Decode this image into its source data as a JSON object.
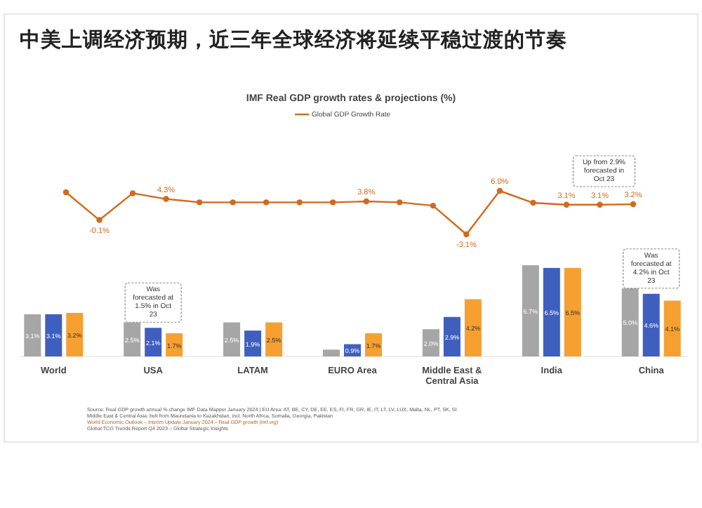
{
  "chart_data": [
    {
      "type": "line",
      "title": "中美上调经济预期，近三年全球经济将延续平稳过渡的节奏",
      "subtitle": "IMF Real GDP growth rates & projections (%)",
      "categories": [
        null,
        null,
        null,
        null,
        null,
        null,
        null,
        null,
        null,
        null,
        null,
        null,
        null,
        null,
        null,
        null,
        null,
        null
      ],
      "legend": "top",
      "marker": "circle",
      "series": [
        {
          "name": "Global GDP Growth Rate",
          "color": "#d2691e",
          "values": [
            5.7,
            -0.1,
            5.5,
            4.3,
            3.6,
            3.6,
            3.6,
            3.6,
            3.6,
            3.8,
            3.6,
            2.9,
            -3.1,
            6.0,
            3.5,
            3.1,
            3.1,
            3.2
          ],
          "value_labels": [
            null,
            "-0.1%",
            null,
            "4.3%",
            null,
            null,
            null,
            null,
            null,
            "3.8%",
            null,
            null,
            "-3.1%",
            "6.0%",
            null,
            "3.1%",
            "3.1%",
            "3.2%"
          ]
        }
      ],
      "annotations": [
        "Up from 2.9% forecasted in Oct 23"
      ]
    },
    {
      "type": "bar",
      "categories": [
        "World",
        "USA",
        "LATAM",
        "EURO Area",
        "Middle East & Central Asia",
        "India",
        "China"
      ],
      "series": [
        {
          "color": "#a6a6a6",
          "values": [
            3.1,
            2.5,
            2.5,
            0.5,
            2.0,
            6.7,
            5.0
          ],
          "value_labels": [
            "3.1%",
            "2.5%",
            "2.5%",
            null,
            "2.0%",
            "6.7%",
            "5.0%"
          ]
        },
        {
          "color": "#3f5fbf",
          "values": [
            3.1,
            2.1,
            1.9,
            0.9,
            2.9,
            6.5,
            4.6
          ],
          "value_labels": [
            "3.1%",
            "2.1%",
            "1.9%",
            "0.9%",
            "2.9%",
            "6.5%",
            "4.6%"
          ]
        },
        {
          "color": "#f5a030",
          "values": [
            3.2,
            1.7,
            2.5,
            1.7,
            4.2,
            6.5,
            4.1
          ],
          "value_labels": [
            "3.2%",
            "1.7%",
            "2.5%",
            "1.7%",
            "4.2%",
            "6.5%",
            "4.1%"
          ]
        }
      ],
      "annotations": [
        {
          "text": "Was forecasted at 1.5% in Oct 23",
          "x": "USA",
          "y": 2.1
        },
        {
          "text": "Was forecasted at 4.2% in Oct 23",
          "x": "China",
          "y": 4.6
        },
        "Source: Real GDP growth annual % change IMF Data Mapper January 2024 | EU Area: AT, BE, CY, DE, EE, ES, FI, FR, GR, IE, IT, LT, LV, LUX, Malta, NL, PT, SK, SI",
        "Middle East & Central Asia: belt from Mauretania to Kazakhstan, incl. North Africa, Somalia, Georgia, Pakistan",
        "World Economic Outlook – Interim Update January 2024 – Real GDP growth (imf.org)",
        "Global TCG Trends Report Q4 2023 – Global Strategic Insights"
      ]
    }
  ]
}
